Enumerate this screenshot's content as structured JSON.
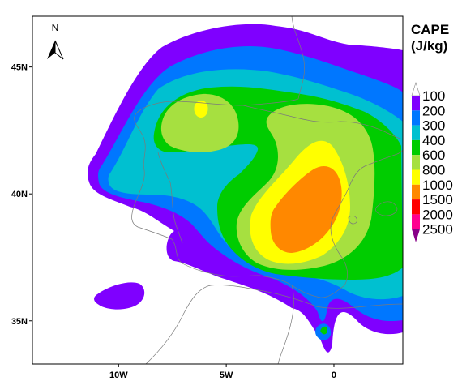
{
  "map": {
    "title_line1": "CAPE",
    "title_line2": "(J/kg)",
    "north_label": "N",
    "lon_ticks": [
      {
        "lon": -10,
        "label": "10W"
      },
      {
        "lon": -5,
        "label": "5W"
      },
      {
        "lon": 0,
        "label": "0"
      }
    ],
    "lat_ticks": [
      {
        "lat": 45,
        "label": "45N"
      },
      {
        "lat": 40,
        "label": "40N"
      },
      {
        "lat": 35,
        "label": "35N"
      }
    ],
    "extent": {
      "lon_min": -14,
      "lon_max": 3.2,
      "lat_min": 33.3,
      "lat_max": 47
    }
  },
  "legend": {
    "levels": [
      {
        "label": "100",
        "color": "#ffffff"
      },
      {
        "label": "200",
        "color": "#7f00ff"
      },
      {
        "label": "300",
        "color": "#0077ff"
      },
      {
        "label": "400",
        "color": "#00c0d0"
      },
      {
        "label": "600",
        "color": "#00cc00"
      },
      {
        "label": "800",
        "color": "#a6e040"
      },
      {
        "label": "1000",
        "color": "#ffff00"
      },
      {
        "label": "1500",
        "color": "#ff8800"
      },
      {
        "label": "2000",
        "color": "#ff0000"
      },
      {
        "label": "2500",
        "color": "#ff0090"
      }
    ],
    "top_arrow_color": "#ffffff",
    "bottom_arrow_color": "#880088"
  },
  "chart_data": {
    "type": "heatmap",
    "title": "CAPE (J/kg)",
    "levels": [
      100,
      200,
      300,
      400,
      600,
      800,
      1000,
      1500,
      2000,
      2500
    ],
    "colors": [
      "#ffffff",
      "#7f00ff",
      "#0077ff",
      "#00c0d0",
      "#00cc00",
      "#a6e040",
      "#ffff00",
      "#ff8800",
      "#ff0000",
      "#ff0090"
    ]
  }
}
